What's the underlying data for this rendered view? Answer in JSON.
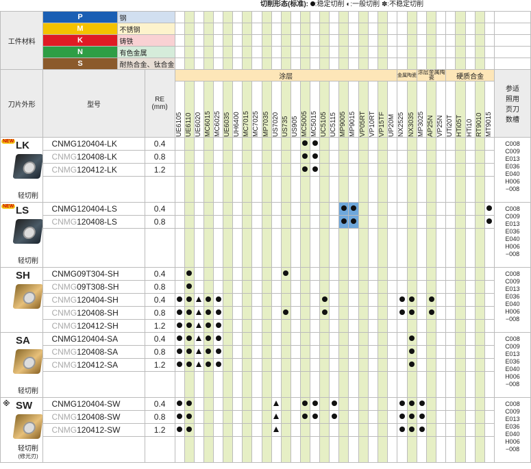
{
  "legend": {
    "title": "切削形态(标准):",
    "stable": "稳定切削",
    "general": "一般切削",
    "unstable": "不稳定切削"
  },
  "colors": {
    "P": "#1a5fb4",
    "M": "#f3c200",
    "K": "#e01b24",
    "N": "#2e9e45",
    "S": "#8b5a2b",
    "stripe": "#e6efc5",
    "highlight": "#6fa8dc"
  },
  "header": {
    "workpiece": "工件材料",
    "shape": "刀片外形",
    "model": "型号",
    "re": "RE",
    "re_unit": "(mm)",
    "ref": "参适照用页刀数槽",
    "coated": "涂层",
    "cermet": "金属陶瓷",
    "coated_cermet": "涂层金属陶瓷",
    "carbide": "硬质合金"
  },
  "materials": [
    {
      "letter": "P",
      "name": "钢"
    },
    {
      "letter": "M",
      "name": "不锈钢"
    },
    {
      "letter": "K",
      "name": "铸铁"
    },
    {
      "letter": "N",
      "name": "有色金属"
    },
    {
      "letter": "S",
      "name": "耐热合金、钛合金"
    }
  ],
  "grades": [
    "UE6105",
    "UE6110",
    "UE6020",
    "MC6015",
    "MC6025",
    "UE6035",
    "UH6400",
    "MC7015",
    "MC7025",
    "MP7035",
    "US7020",
    "US735",
    "US905",
    "MC5005",
    "MC5015",
    "UC5105",
    "UC5115",
    "MP9005",
    "MP9015",
    "VP05RT",
    "VP10RT",
    "VP15TF",
    "UP20M",
    "NX2525",
    "NX3035",
    "MP3025",
    "AP25N",
    "VP25N",
    "UTi20T",
    "HTi05T",
    "HTi10",
    "RT9010",
    "MT9015"
  ],
  "ref_lines": [
    "C008",
    "C009",
    "E013",
    "E036",
    "E040",
    "H006",
    "−008"
  ],
  "groups": [
    {
      "name": "LK",
      "new": "NEW",
      "sub": "轻切削",
      "insert": "dk",
      "rows": [
        {
          "prefix": "",
          "model": "CNMG120404-LK",
          "re": "0.4",
          "marks": {
            "13": "d",
            "14": "d"
          }
        },
        {
          "prefix": "CNMG",
          "model": "120408-LK",
          "re": "0.8",
          "marks": {
            "13": "d",
            "14": "d"
          }
        },
        {
          "prefix": "CNMG",
          "model": "120412-LK",
          "re": "1.2",
          "marks": {
            "13": "d",
            "14": "d"
          }
        }
      ]
    },
    {
      "name": "LS",
      "new": "NEW",
      "sub": "轻切削",
      "insert": "dk",
      "rows": [
        {
          "prefix": "",
          "model": "CNMG120404-LS",
          "re": "0.4",
          "marks": {
            "17": "d",
            "18": "d",
            "32": "d"
          }
        },
        {
          "prefix": "CNMG",
          "model": "120408-LS",
          "re": "0.8",
          "marks": {
            "17": "d",
            "18": "d",
            "32": "d"
          }
        }
      ]
    },
    {
      "name": "SH",
      "new": "",
      "sub": "",
      "insert": "gd",
      "rows": [
        {
          "prefix": "",
          "model": "CNMG09T304-SH",
          "re": "0.4",
          "marks": {
            "1": "d",
            "11": "d"
          }
        },
        {
          "prefix": "CNMG",
          "model": "09T308-SH",
          "re": "0.8",
          "marks": {
            "1": "d"
          }
        },
        {
          "prefix": "CNMG",
          "model": "120404-SH",
          "re": "0.4",
          "marks": {
            "0": "d",
            "1": "d",
            "2": "t",
            "3": "d",
            "4": "d",
            "15": "d",
            "23": "d",
            "24": "d",
            "26": "d"
          }
        },
        {
          "prefix": "CNMG",
          "model": "120408-SH",
          "re": "0.8",
          "marks": {
            "0": "d",
            "1": "d",
            "2": "t",
            "3": "d",
            "4": "d",
            "11": "d",
            "15": "d",
            "23": "d",
            "24": "d",
            "26": "d"
          }
        },
        {
          "prefix": "CNMG",
          "model": "120412-SH",
          "re": "1.2",
          "marks": {
            "0": "d",
            "1": "d",
            "2": "t",
            "3": "d",
            "4": "d"
          }
        }
      ]
    },
    {
      "name": "SA",
      "new": "",
      "sub": "轻切削",
      "insert": "gd",
      "rows": [
        {
          "prefix": "",
          "model": "CNMG120404-SA",
          "re": "0.4",
          "marks": {
            "0": "d",
            "1": "d",
            "2": "t",
            "3": "d",
            "4": "d",
            "24": "d"
          }
        },
        {
          "prefix": "CNMG",
          "model": "120408-SA",
          "re": "0.8",
          "marks": {
            "0": "d",
            "1": "d",
            "2": "t",
            "3": "d",
            "4": "d",
            "24": "d"
          }
        },
        {
          "prefix": "CNMG",
          "model": "120412-SA",
          "re": "1.2",
          "marks": {
            "0": "d",
            "1": "d",
            "2": "t",
            "3": "d",
            "4": "d",
            "24": "d"
          }
        }
      ]
    },
    {
      "name": "SW",
      "new": "※",
      "sub": "轻切削",
      "sub2": "(修光刃)",
      "insert": "gd",
      "rows": [
        {
          "prefix": "",
          "model": "CNMG120404-SW",
          "re": "0.4",
          "marks": {
            "0": "d",
            "1": "d",
            "10": "t",
            "13": "d",
            "14": "d",
            "16": "d",
            "23": "d",
            "24": "d",
            "25": "d"
          }
        },
        {
          "prefix": "CNMG",
          "model": "120408-SW",
          "re": "0.8",
          "marks": {
            "0": "d",
            "1": "d",
            "10": "t",
            "13": "d",
            "14": "d",
            "16": "d",
            "23": "d",
            "24": "d",
            "25": "d"
          }
        },
        {
          "prefix": "CNMG",
          "model": "120412-SW",
          "re": "1.2",
          "marks": {
            "0": "d",
            "1": "d",
            "10": "t",
            "23": "d",
            "24": "d",
            "25": "d"
          }
        }
      ]
    }
  ]
}
